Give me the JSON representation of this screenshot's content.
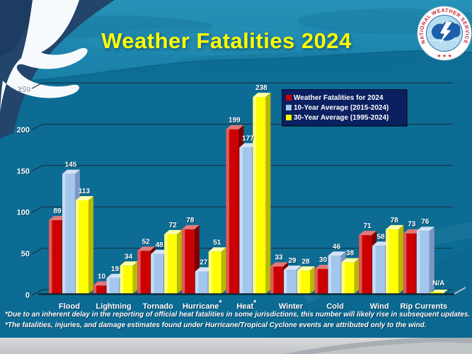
{
  "chart_data": {
    "type": "bar",
    "title": "Weather Fatalities 2024",
    "categories": [
      "Flood",
      "Lightning",
      "Tornado",
      "Hurricane",
      "Heat",
      "Winter",
      "Cold",
      "Wind",
      "Rip Currents"
    ],
    "asterisk_categories": [
      "Hurricane",
      "Heat"
    ],
    "series": [
      {
        "name": "Weather Fatalities for 2024",
        "color": "#cc0000",
        "color_top": "#e07a7a",
        "color_side": "#7e0000",
        "values": [
          89,
          10,
          52,
          78,
          199,
          33,
          30,
          71,
          73
        ]
      },
      {
        "name": "10-Year Average (2015-2024)",
        "color": "#a5c6ec",
        "color_top": "#d3e2f5",
        "color_side": "#7a98c2",
        "values": [
          145,
          19,
          48,
          27,
          177,
          29,
          46,
          58,
          76
        ]
      },
      {
        "name": "30-Year Average (1995-2024)",
        "color": "#ffff00",
        "color_top": "#ffffa8",
        "color_side": "#b9b900",
        "values": [
          113,
          34,
          72,
          51,
          238,
          28,
          38,
          78,
          null
        ]
      }
    ],
    "na_text": "N/A",
    "xlabel": "",
    "ylabel": "",
    "ylim": [
      0,
      250
    ],
    "yticks": [
      0,
      50,
      100,
      150,
      200,
      250
    ],
    "grid": true,
    "legend_position": "top-right"
  },
  "logo": {
    "ring_text": "NATIONAL WEATHER SERVICE",
    "stars": "★ ★ ★"
  },
  "footnotes": {
    "line1": "*Due to an inherent delay in the reporting of official heat fatalities in some jurisdictions, this number will likely rise in subsequent updates.",
    "line2": "*The fatalities, injuries, and damage estimates found under Hurricane/Tropical Cyclone events are attributed only to the wind."
  },
  "colors": {
    "title": "#ffff00",
    "background": "#0e6f97",
    "legend_background": "#0a2060",
    "gridline": "#142c3a",
    "label_text": "#ffffff"
  }
}
